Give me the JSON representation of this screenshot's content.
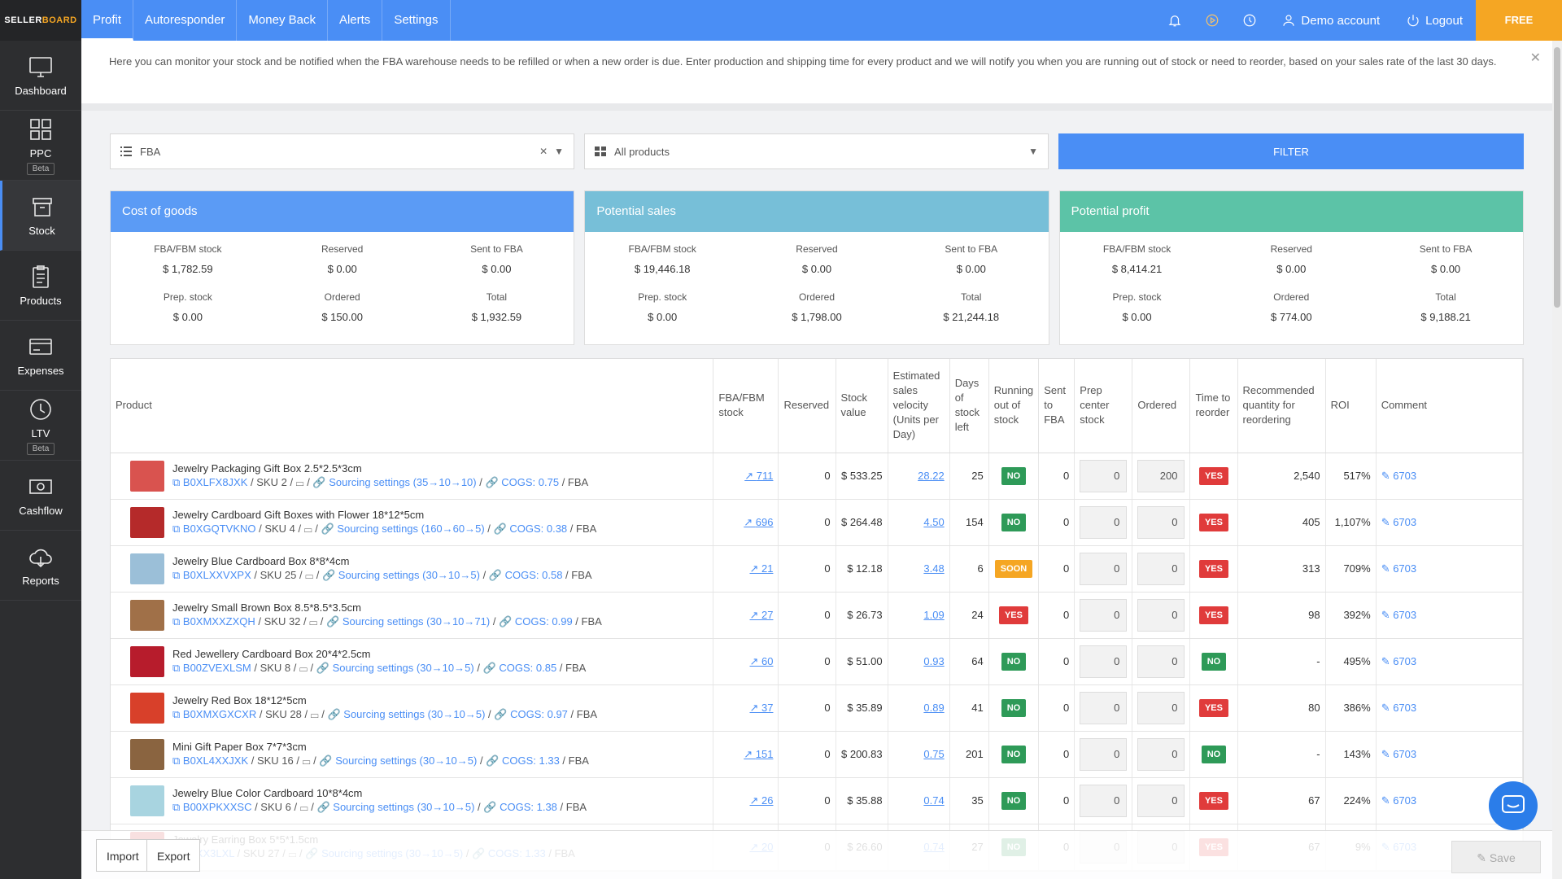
{
  "brand": {
    "part1": "SELLER",
    "part2": "BOARD"
  },
  "sidebar": {
    "items": [
      {
        "label": "Dashboard",
        "icon": "monitor-icon"
      },
      {
        "label": "PPC",
        "icon": "grid-icon",
        "badge": "Beta"
      },
      {
        "label": "Stock",
        "icon": "box-icon"
      },
      {
        "label": "Products",
        "icon": "clipboard-icon"
      },
      {
        "label": "Expenses",
        "icon": "card-icon"
      },
      {
        "label": "LTV",
        "icon": "clock-icon",
        "badge": "Beta"
      },
      {
        "label": "Cashflow",
        "icon": "money-icon"
      },
      {
        "label": "Reports",
        "icon": "cloud-icon"
      }
    ]
  },
  "topnav": {
    "tabs": [
      "Profit",
      "Autoresponder",
      "Money Back",
      "Alerts",
      "Settings"
    ],
    "demo": "Demo account",
    "logout": "Logout",
    "trial": "FREE TRIAL"
  },
  "notice": "Here you can monitor your stock and be notified when the FBA warehouse needs to be refilled or when a new order is due. Enter production and shipping time for every product and we will notify you when you are running out of stock or need to reorder, based on your sales rate of the last 30 days.",
  "filters": {
    "fulfillment": "FBA",
    "products": "All products",
    "button": "FILTER"
  },
  "cards": [
    {
      "title": "Cost of goods",
      "color": "#5b9bf5",
      "cells": [
        [
          "FBA/FBM stock",
          "$ 1,782.59"
        ],
        [
          "Reserved",
          "$ 0.00"
        ],
        [
          "Sent to FBA",
          "$ 0.00"
        ],
        [
          "Prep. stock",
          "$ 0.00"
        ],
        [
          "Ordered",
          "$ 150.00"
        ],
        [
          "Total",
          "$ 1,932.59"
        ]
      ]
    },
    {
      "title": "Potential sales",
      "color": "#77bfd8",
      "cells": [
        [
          "FBA/FBM stock",
          "$ 19,446.18"
        ],
        [
          "Reserved",
          "$ 0.00"
        ],
        [
          "Sent to FBA",
          "$ 0.00"
        ],
        [
          "Prep. stock",
          "$ 0.00"
        ],
        [
          "Ordered",
          "$ 1,798.00"
        ],
        [
          "Total",
          "$ 21,244.18"
        ]
      ]
    },
    {
      "title": "Potential profit",
      "color": "#5cc3a7",
      "cells": [
        [
          "FBA/FBM stock",
          "$ 8,414.21"
        ],
        [
          "Reserved",
          "$ 0.00"
        ],
        [
          "Sent to FBA",
          "$ 0.00"
        ],
        [
          "Prep. stock",
          "$ 0.00"
        ],
        [
          "Ordered",
          "$ 774.00"
        ],
        [
          "Total",
          "$ 9,188.21"
        ]
      ]
    }
  ],
  "table": {
    "headers": [
      "Product",
      "FBA/FBM stock",
      "Reserved",
      "Stock value",
      "Estimated sales velocity (Units per Day)",
      "Days of stock left",
      "Running out of stock",
      "Sent to FBA",
      "Prep center stock",
      "Ordered",
      "Time to reorder",
      "Recommended quantity for reordering",
      "ROI",
      "Comment"
    ],
    "rows": [
      {
        "name": "Jewelry Packaging Gift Box 2.5*2.5*3cm",
        "asin": "B0XLFX8JXK",
        "sku": "SKU 2",
        "sourcing": "Sourcing settings (35→10→10)",
        "cogs": "COGS: 0.75",
        "channel": "FBA",
        "stock": "711",
        "reserved": "0",
        "value": "$ 533.25",
        "velocity": "28.22",
        "days": "25",
        "running": "NO",
        "sent": "0",
        "prep": "0",
        "ordered": "200",
        "reorder": "YES",
        "qty": "2,540",
        "roi": "517%",
        "comment": "6703",
        "color": "#d9534f"
      },
      {
        "name": "Jewelry Cardboard Gift Boxes with Flower 18*12*5cm",
        "asin": "B0XGQTVKNO",
        "sku": "SKU 4",
        "sourcing": "Sourcing settings (160→60→5)",
        "cogs": "COGS: 0.38",
        "channel": "FBA",
        "stock": "696",
        "reserved": "0",
        "value": "$ 264.48",
        "velocity": "4.50",
        "days": "154",
        "running": "NO",
        "sent": "0",
        "prep": "0",
        "ordered": "0",
        "reorder": "YES",
        "qty": "405",
        "roi": "1,107%",
        "comment": "6703",
        "color": "#b52a2a"
      },
      {
        "name": "Jewelry Blue Cardboard Box 8*8*4cm",
        "asin": "B0XLXXVXPX",
        "sku": "SKU 25",
        "sourcing": "Sourcing settings (30→10→5)",
        "cogs": "COGS: 0.58",
        "channel": "FBA",
        "stock": "21",
        "reserved": "0",
        "value": "$ 12.18",
        "velocity": "3.48",
        "days": "6",
        "running": "SOON",
        "sent": "0",
        "prep": "0",
        "ordered": "0",
        "reorder": "YES",
        "qty": "313",
        "roi": "709%",
        "comment": "6703",
        "color": "#9bbfd8"
      },
      {
        "name": "Jewelry Small Brown Box 8.5*8.5*3.5cm",
        "asin": "B0XMXXZXQH",
        "sku": "SKU 32",
        "sourcing": "Sourcing settings (30→10→71)",
        "cogs": "COGS: 0.99",
        "channel": "FBA",
        "stock": "27",
        "reserved": "0",
        "value": "$ 26.73",
        "velocity": "1.09",
        "days": "24",
        "running": "YES",
        "sent": "0",
        "prep": "0",
        "ordered": "0",
        "reorder": "YES",
        "qty": "98",
        "roi": "392%",
        "comment": "6703",
        "color": "#a07048"
      },
      {
        "name": "Red Jewellery Cardboard Box 20*4*2.5cm",
        "asin": "B00ZVEXLSM",
        "sku": "SKU 8",
        "sourcing": "Sourcing settings (30→10→5)",
        "cogs": "COGS: 0.85",
        "channel": "FBA",
        "stock": "60",
        "reserved": "0",
        "value": "$ 51.00",
        "velocity": "0.93",
        "days": "64",
        "running": "NO",
        "sent": "0",
        "prep": "0",
        "ordered": "0",
        "reorder": "NO",
        "qty": "-",
        "roi": "495%",
        "comment": "6703",
        "color": "#b71c2c"
      },
      {
        "name": "Jewelry Red Box 18*12*5cm",
        "asin": "B0XMXGXCXR",
        "sku": "SKU 28",
        "sourcing": "Sourcing settings (30→10→5)",
        "cogs": "COGS: 0.97",
        "channel": "FBA",
        "stock": "37",
        "reserved": "0",
        "value": "$ 35.89",
        "velocity": "0.89",
        "days": "41",
        "running": "NO",
        "sent": "0",
        "prep": "0",
        "ordered": "0",
        "reorder": "YES",
        "qty": "80",
        "roi": "386%",
        "comment": "6703",
        "color": "#d8402a"
      },
      {
        "name": "Mini Gift Paper Box 7*7*3cm",
        "asin": "B0XL4XXJXK",
        "sku": "SKU 16",
        "sourcing": "Sourcing settings (30→10→5)",
        "cogs": "COGS: 1.33",
        "channel": "FBA",
        "stock": "151",
        "reserved": "0",
        "value": "$ 200.83",
        "velocity": "0.75",
        "days": "201",
        "running": "NO",
        "sent": "0",
        "prep": "0",
        "ordered": "0",
        "reorder": "NO",
        "qty": "-",
        "roi": "143%",
        "comment": "6703",
        "color": "#8a6440"
      },
      {
        "name": "Jewelry Blue Color Cardboard 10*8*4cm",
        "asin": "B00XPKXXSC",
        "sku": "SKU 6",
        "sourcing": "Sourcing settings (30→10→5)",
        "cogs": "COGS: 1.38",
        "channel": "FBA",
        "stock": "26",
        "reserved": "0",
        "value": "$ 35.88",
        "velocity": "0.74",
        "days": "35",
        "running": "NO",
        "sent": "0",
        "prep": "0",
        "ordered": "0",
        "reorder": "YES",
        "qty": "67",
        "roi": "224%",
        "comment": "6703",
        "color": "#a8d4e0"
      },
      {
        "name": "Jewelry Earring Box 5*5*1.5cm",
        "asin": "B0XX3LXL",
        "sku": "SKU 27",
        "sourcing": "Sourcing settings (30→10→5)",
        "cogs": "COGS: 1.33",
        "channel": "FBA",
        "stock": "20",
        "reserved": "0",
        "value": "$ 26.60",
        "velocity": "0.74",
        "days": "27",
        "running": "NO",
        "sent": "0",
        "prep": "0",
        "ordered": "0",
        "reorder": "YES",
        "qty": "67",
        "roi": "9%",
        "comment": "6703",
        "color": "#cc3333"
      }
    ]
  },
  "footer": {
    "import": "Import",
    "export": "Export",
    "save": "Save"
  }
}
